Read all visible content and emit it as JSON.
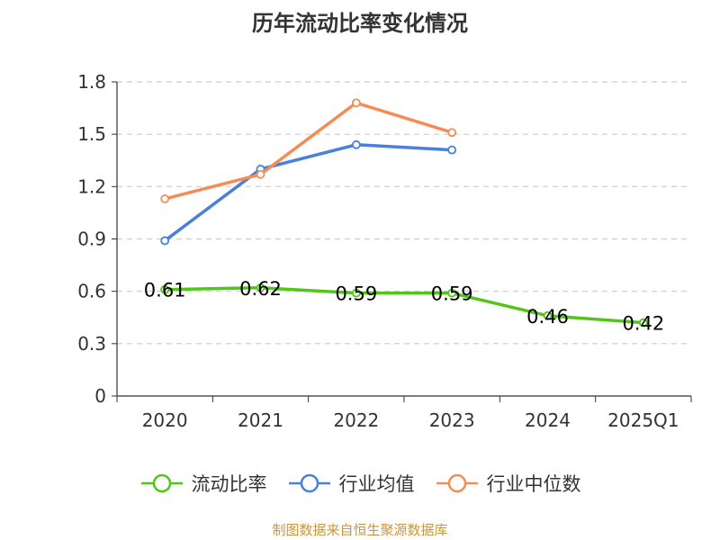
{
  "chart_data": {
    "type": "line",
    "title": "历年流动比率变化情况",
    "categories": [
      "2020",
      "2021",
      "2022",
      "2023",
      "2024",
      "2025Q1"
    ],
    "ylim": [
      0,
      1.8
    ],
    "yticks": [
      "0",
      "0.3",
      "0.6",
      "0.9",
      "1.2",
      "1.5",
      "1.8"
    ],
    "grid": true,
    "legend_position": "bottom",
    "series": [
      {
        "name": "流动比率",
        "color": "#52c41a",
        "values": [
          0.61,
          0.62,
          0.59,
          0.59,
          0.46,
          0.42
        ],
        "labels": [
          "0.61",
          "0.62",
          "0.59",
          "0.59",
          "0.46",
          "0.42"
        ]
      },
      {
        "name": "行业均值",
        "color": "#4a7fdc",
        "values": [
          0.89,
          1.3,
          1.44,
          1.41,
          null,
          null
        ]
      },
      {
        "name": "行业中位数",
        "color": "#f58c55",
        "values": [
          1.13,
          1.27,
          1.68,
          1.51,
          null,
          null
        ]
      }
    ]
  },
  "source_text": "制图数据来自恒生聚源数据库"
}
